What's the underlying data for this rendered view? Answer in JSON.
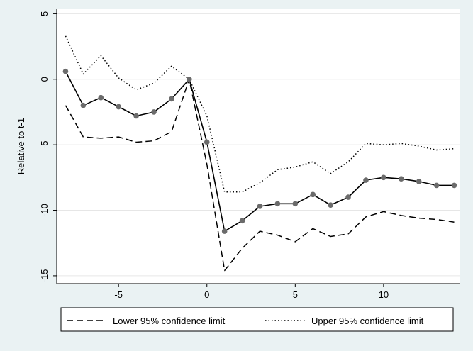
{
  "chart_data": {
    "type": "line",
    "title": "",
    "xlabel": "",
    "ylabel": "Relative to t-1",
    "xlim": [
      -8.5,
      14.3
    ],
    "ylim": [
      -15.6,
      5.4
    ],
    "xticks": [
      -5,
      0,
      5,
      10
    ],
    "yticks": [
      5,
      0,
      -5,
      -10,
      -15
    ],
    "grid": "horizontal",
    "legend_placement": "bottom",
    "colors": {
      "outer_background": "#eaf2f3",
      "plot_background": "#ffffff",
      "gridline": "#e6e6e6",
      "line": "#000000",
      "marker": "#6b6b6b"
    },
    "x": [
      -8,
      -7,
      -6,
      -5,
      -4,
      -3,
      -2,
      -1,
      0,
      1,
      2,
      3,
      4,
      5,
      6,
      7,
      8,
      9,
      10,
      11,
      12,
      13,
      14
    ],
    "series": [
      {
        "style": "solid-with-markers",
        "values": [
          0.6,
          -2.0,
          -1.4,
          -2.1,
          -2.8,
          -2.5,
          -1.5,
          0.0,
          -4.8,
          -11.6,
          -10.8,
          -9.7,
          -9.5,
          -9.5,
          -8.8,
          -9.6,
          -9.0,
          -7.7,
          -7.5,
          -7.6,
          -7.8,
          -8.1,
          -8.1
        ]
      },
      {
        "name": "Lower 95% confidence limit",
        "style": "dashed",
        "values": [
          -2.0,
          -4.4,
          -4.5,
          -4.4,
          -4.8,
          -4.7,
          -4.0,
          0.0,
          -6.5,
          -14.6,
          -12.9,
          -11.6,
          -11.9,
          -12.4,
          -11.4,
          -12.0,
          -11.8,
          -10.5,
          -10.1,
          -10.4,
          -10.6,
          -10.7,
          -10.9
        ]
      },
      {
        "name": "Upper 95% confidence limit",
        "style": "dotted",
        "values": [
          3.3,
          0.4,
          1.8,
          0.1,
          -0.8,
          -0.3,
          1.0,
          0.0,
          -2.8,
          -8.6,
          -8.6,
          -7.9,
          -6.9,
          -6.7,
          -6.3,
          -7.2,
          -6.3,
          -4.9,
          -5.0,
          -4.9,
          -5.1,
          -5.4,
          -5.3
        ]
      }
    ]
  }
}
